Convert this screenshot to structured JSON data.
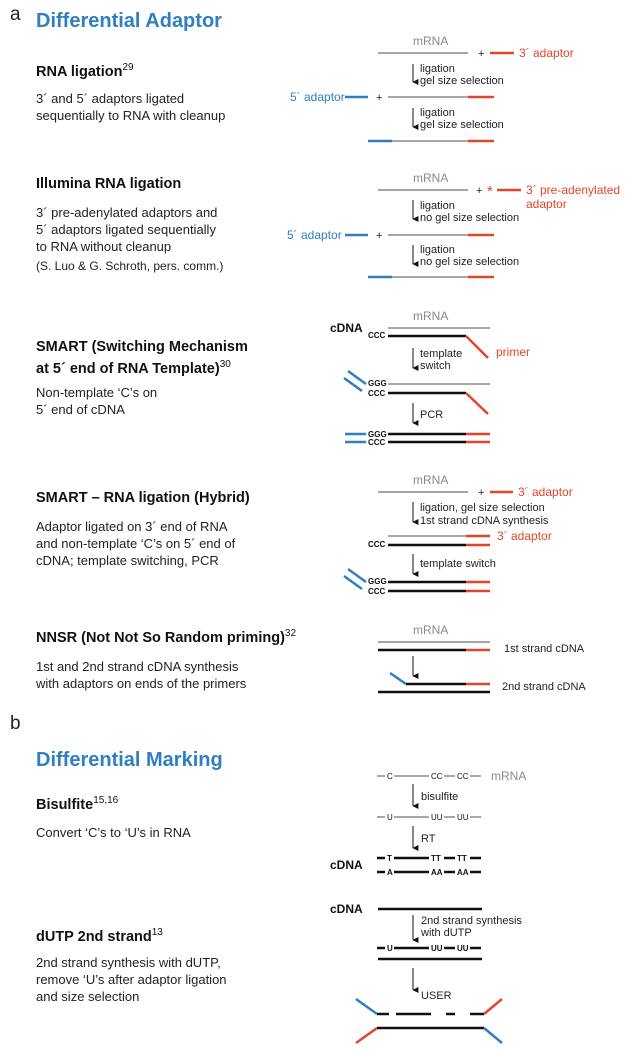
{
  "panels": {
    "a": {
      "letter": "a",
      "title": "Differential Adaptor",
      "methods": [
        {
          "name": "RNA ligation",
          "ref": "29",
          "desc": [
            "3´ and 5´ adaptors ligated",
            "sequentially to RNA with cleanup"
          ],
          "diagram": {
            "mrna": "mRNA",
            "three_adaptor": "3´ adaptor",
            "five_adaptor": "5´ adaptor",
            "step1": [
              "ligation",
              "gel size selection"
            ],
            "step2": [
              "ligation",
              "gel size selection"
            ]
          }
        },
        {
          "name": "Illumina RNA ligation",
          "ref": "",
          "desc": [
            "3´ pre-adenylated adaptors and",
            "5´ adaptors ligated sequentially",
            "to RNA without cleanup",
            "(S. Luo & G. Schroth, pers. comm.)"
          ],
          "diagram": {
            "mrna": "mRNA",
            "three_adaptor": [
              "3´ pre-adenylated",
              "adaptor"
            ],
            "five_adaptor": "5´ adaptor",
            "star": "*",
            "step1": [
              "ligation",
              "no gel size selection"
            ],
            "step2": [
              "ligation",
              "no gel size selection"
            ]
          }
        },
        {
          "name": [
            "SMART (Switching Mechanism",
            "at 5´ end of RNA Template)"
          ],
          "ref": "30",
          "desc": [
            "Non-template ‘C’s on",
            "5´ end of cDNA"
          ],
          "diagram": {
            "mrna": "mRNA",
            "cdna": "cDNA",
            "primer": "primer",
            "ccc": "CCC",
            "ggg": "GGG",
            "step1": [
              "template",
              "switch"
            ],
            "step2": "PCR"
          }
        },
        {
          "name": "SMART – RNA ligation (Hybrid)",
          "ref": "",
          "desc": [
            "Adaptor ligated on 3´ end of RNA",
            "and non-template ‘C’s on 5´ end of",
            "cDNA; template switching, PCR"
          ],
          "diagram": {
            "mrna": "mRNA",
            "three_adaptor": "3´ adaptor",
            "three_adaptor2": "3´ adaptor",
            "ccc": "CCC",
            "ggg": "GGG",
            "step1": [
              "ligation, gel size selection",
              "1st strand cDNA synthesis"
            ],
            "step2": "template switch"
          }
        },
        {
          "name": "NNSR (Not Not So Random priming)",
          "ref": "32",
          "desc": [
            "1st and 2nd strand cDNA synthesis",
            "with adaptors on ends of the primers"
          ],
          "diagram": {
            "mrna": "mRNA",
            "first": "1st strand cDNA",
            "second": "2nd strand cDNA"
          }
        }
      ]
    },
    "b": {
      "letter": "b",
      "title": "Differential Marking",
      "methods": [
        {
          "name": "Bisulfite",
          "ref": "15,16",
          "desc": [
            "Convert ‘C’s to ‘U’s in RNA"
          ],
          "diagram": {
            "mrna": "mRNA",
            "cdna": "cDNA",
            "step1": "bisulfite",
            "step2": "RT",
            "c": "C",
            "cc": "CC",
            "u": "U",
            "uu": "UU",
            "t": "T",
            "tt": "TT",
            "a": "A",
            "aa": "AA"
          }
        },
        {
          "name": "dUTP 2nd strand",
          "ref": "13",
          "desc": [
            "2nd strand synthesis with dUTP,",
            "remove ‘U’s after adaptor ligation",
            "and size selection"
          ],
          "diagram": {
            "cdna": "cDNA",
            "step1": [
              "2nd strand synthesis",
              "with dUTP"
            ],
            "step2": "USER",
            "u": "U",
            "uu": "UU"
          }
        }
      ]
    }
  },
  "colors": {
    "blue": "#2f7fc1",
    "red": "#e2452d",
    "gray": "#8a8a8a",
    "black": "#111111"
  }
}
